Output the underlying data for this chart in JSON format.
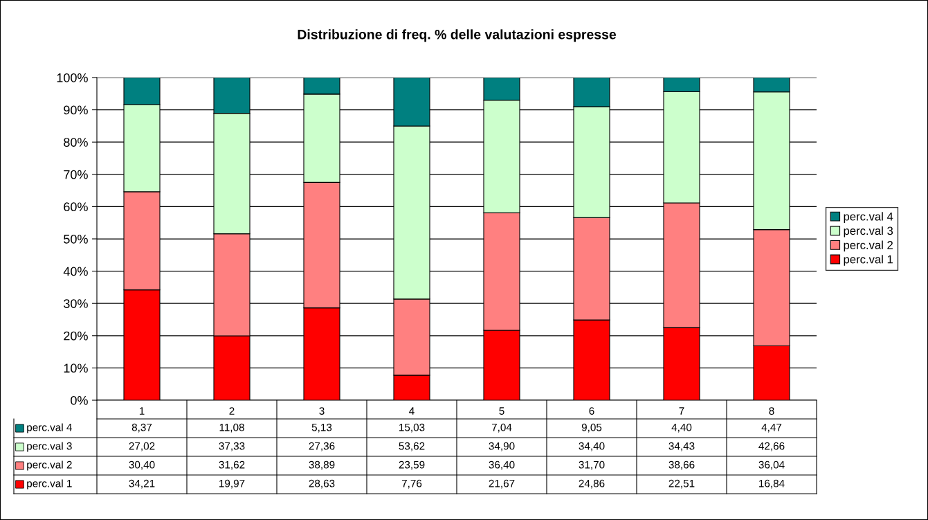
{
  "chart_data": {
    "type": "bar",
    "title": "Distribuzione di freq. % delle valutazioni espresse",
    "categories": [
      "1",
      "2",
      "3",
      "4",
      "5",
      "6",
      "7",
      "8"
    ],
    "stacked": true,
    "series": [
      {
        "name": "perc.val 1",
        "color": "#ff0000",
        "values": [
          34.21,
          19.97,
          28.63,
          7.76,
          21.67,
          24.86,
          22.51,
          16.84
        ],
        "value_labels": [
          "34,21",
          "19,97",
          "28,63",
          "7,76",
          "21,67",
          "24,86",
          "22,51",
          "16,84"
        ]
      },
      {
        "name": "perc.val 2",
        "color": "#ff8080",
        "values": [
          30.4,
          31.62,
          38.89,
          23.59,
          36.4,
          31.7,
          38.66,
          36.04
        ],
        "value_labels": [
          "30,40",
          "31,62",
          "38,89",
          "23,59",
          "36,40",
          "31,70",
          "38,66",
          "36,04"
        ]
      },
      {
        "name": "perc.val 3",
        "color": "#ccffcc",
        "values": [
          27.02,
          37.33,
          27.36,
          53.62,
          34.9,
          34.4,
          34.43,
          42.66
        ],
        "value_labels": [
          "27,02",
          "37,33",
          "27,36",
          "53,62",
          "34,90",
          "34,40",
          "34,43",
          "42,66"
        ]
      },
      {
        "name": "perc.val 4",
        "color": "#008080",
        "values": [
          8.37,
          11.08,
          5.13,
          15.03,
          7.04,
          9.05,
          4.4,
          4.47
        ],
        "value_labels": [
          "8,37",
          "11,08",
          "5,13",
          "15,03",
          "7,04",
          "9,05",
          "4,40",
          "4,47"
        ]
      }
    ],
    "ylim": [
      0,
      100
    ],
    "yticks": [
      {
        "value": 0,
        "label": "0%"
      },
      {
        "value": 10,
        "label": "10%"
      },
      {
        "value": 20,
        "label": "20%"
      },
      {
        "value": 30,
        "label": "30%"
      },
      {
        "value": 40,
        "label": "40%"
      },
      {
        "value": 50,
        "label": "50%"
      },
      {
        "value": 60,
        "label": "60%"
      },
      {
        "value": 70,
        "label": "70%"
      },
      {
        "value": 80,
        "label": "80%"
      },
      {
        "value": 90,
        "label": "90%"
      },
      {
        "value": 100,
        "label": "100%"
      }
    ],
    "grid": "y",
    "legend": "right"
  }
}
